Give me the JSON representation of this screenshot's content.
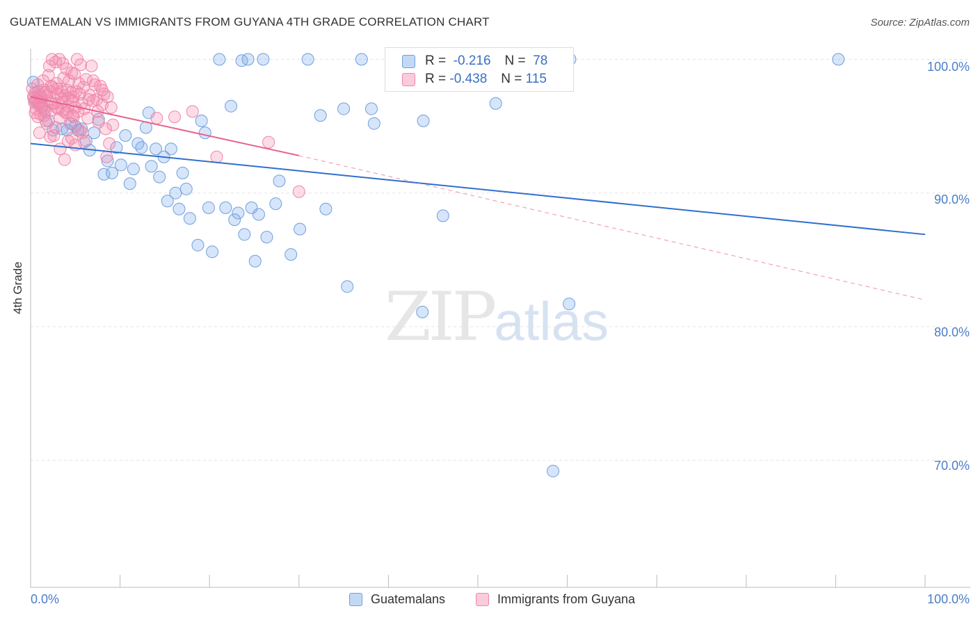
{
  "title": "GUATEMALAN VS IMMIGRANTS FROM GUYANA 4TH GRADE CORRELATION CHART",
  "source": "Source: ZipAtlas.com",
  "legend": {
    "r_label": "R =",
    "n_label": "N =",
    "series1": {
      "r": "-0.216",
      "n": "78"
    },
    "series2": {
      "r": "-0.438",
      "n": "115"
    }
  },
  "bottom_legend": {
    "series1": "Guatemalans",
    "series2": "Immigrants from Guyana"
  },
  "watermark": {
    "zip": "ZIP",
    "atlas": "atlas"
  },
  "colors": {
    "blue_fill": "rgba(120,170,235,0.30)",
    "blue_stroke": "#6f9fdc",
    "blue_line": "#2f6fce",
    "pink_fill": "rgba(245,140,175,0.30)",
    "pink_stroke": "#ee86a8",
    "pink_line": "#e8628e"
  },
  "chart_data": {
    "type": "scatter",
    "title": "GUATEMALAN VS IMMIGRANTS FROM GUYANA 4TH GRADE CORRELATION CHART",
    "xlabel": "",
    "ylabel": "4th Grade",
    "xlim": [
      0,
      100
    ],
    "ylim": [
      60.5,
      100.8
    ],
    "x_tick_labels": [
      "0.0%",
      "100.0%"
    ],
    "y_ticks": [
      {
        "value": 100,
        "label": "100.0%"
      },
      {
        "value": 90,
        "label": "90.0%"
      },
      {
        "value": 80,
        "label": "80.0%"
      },
      {
        "value": 70,
        "label": "70.0%"
      }
    ],
    "grid": true,
    "series": [
      {
        "name": "Guatemalans",
        "r": -0.216,
        "n": 78,
        "trend": {
          "x": [
            0,
            100
          ],
          "y": [
            93.7,
            86.9
          ],
          "style": "solid"
        },
        "points": [
          [
            0.3,
            98.3
          ],
          [
            0.8,
            97.6
          ],
          [
            1.2,
            96.8
          ],
          [
            1.5,
            96.3
          ],
          [
            0.5,
            96.9
          ],
          [
            2.0,
            95.4
          ],
          [
            2.5,
            94.7
          ],
          [
            3.5,
            94.8
          ],
          [
            4.1,
            94.7
          ],
          [
            4.6,
            95.2
          ],
          [
            5.0,
            95.0
          ],
          [
            5.7,
            94.8
          ],
          [
            6.2,
            93.9
          ],
          [
            6.6,
            93.2
          ],
          [
            7.1,
            94.5
          ],
          [
            7.6,
            95.5
          ],
          [
            8.2,
            91.4
          ],
          [
            8.6,
            92.4
          ],
          [
            9.1,
            91.5
          ],
          [
            9.6,
            93.4
          ],
          [
            10.1,
            92.1
          ],
          [
            10.6,
            94.3
          ],
          [
            11.1,
            90.7
          ],
          [
            11.5,
            91.8
          ],
          [
            12.0,
            93.7
          ],
          [
            12.4,
            93.4
          ],
          [
            12.9,
            94.9
          ],
          [
            13.2,
            96.0
          ],
          [
            13.5,
            92.0
          ],
          [
            14.0,
            93.3
          ],
          [
            14.4,
            91.2
          ],
          [
            14.9,
            92.7
          ],
          [
            15.3,
            89.4
          ],
          [
            15.7,
            93.3
          ],
          [
            16.2,
            90.0
          ],
          [
            16.6,
            88.8
          ],
          [
            17.0,
            91.5
          ],
          [
            17.4,
            90.3
          ],
          [
            17.8,
            88.1
          ],
          [
            18.7,
            86.1
          ],
          [
            19.1,
            95.4
          ],
          [
            19.5,
            94.5
          ],
          [
            19.9,
            88.9
          ],
          [
            20.3,
            85.6
          ],
          [
            21.1,
            100.0
          ],
          [
            21.8,
            88.9
          ],
          [
            22.4,
            96.5
          ],
          [
            22.8,
            88.0
          ],
          [
            23.2,
            88.5
          ],
          [
            23.6,
            99.9
          ],
          [
            23.9,
            86.9
          ],
          [
            24.3,
            100.0
          ],
          [
            24.7,
            88.9
          ],
          [
            25.1,
            84.9
          ],
          [
            25.5,
            88.4
          ],
          [
            26.0,
            100.0
          ],
          [
            26.4,
            86.7
          ],
          [
            27.4,
            89.2
          ],
          [
            27.8,
            90.9
          ],
          [
            29.1,
            85.4
          ],
          [
            30.1,
            87.3
          ],
          [
            31.0,
            100.0
          ],
          [
            32.4,
            95.8
          ],
          [
            33.0,
            88.8
          ],
          [
            35.0,
            96.3
          ],
          [
            37.0,
            100.0
          ],
          [
            35.4,
            83.0
          ],
          [
            38.1,
            96.3
          ],
          [
            38.4,
            95.2
          ],
          [
            43.8,
            81.1
          ],
          [
            43.9,
            95.4
          ],
          [
            46.1,
            88.3
          ],
          [
            52.0,
            96.7
          ],
          [
            60.3,
            100.0
          ],
          [
            60.2,
            81.7
          ],
          [
            58.4,
            69.2
          ],
          [
            90.3,
            100.0
          ],
          [
            5.3,
            94.7
          ]
        ]
      },
      {
        "name": "Immigrants from Guyana",
        "r": -0.438,
        "n": 115,
        "trend": {
          "x": [
            0,
            30
          ],
          "y": [
            97.2,
            92.8
          ],
          "style": "solid",
          "extension": {
            "x": [
              30,
              100
            ],
            "y": [
              92.8,
              82.0
            ],
            "style": "dashed"
          }
        },
        "points": [
          [
            0.2,
            97.8
          ],
          [
            0.3,
            97.2
          ],
          [
            0.4,
            96.8
          ],
          [
            0.5,
            97.5
          ],
          [
            0.6,
            96.3
          ],
          [
            0.7,
            97.0
          ],
          [
            0.8,
            98.1
          ],
          [
            0.9,
            96.6
          ],
          [
            1.0,
            97.4
          ],
          [
            1.1,
            95.9
          ],
          [
            1.2,
            97.1
          ],
          [
            1.3,
            96.4
          ],
          [
            1.4,
            98.4
          ],
          [
            1.5,
            97.7
          ],
          [
            1.6,
            96.1
          ],
          [
            1.7,
            95.4
          ],
          [
            1.8,
            97.3
          ],
          [
            1.9,
            96.9
          ],
          [
            2.0,
            98.8
          ],
          [
            2.1,
            99.5
          ],
          [
            2.2,
            97.6
          ],
          [
            2.3,
            96.2
          ],
          [
            2.4,
            100.0
          ],
          [
            2.5,
            97.9
          ],
          [
            2.6,
            94.3
          ],
          [
            2.7,
            96.7
          ],
          [
            2.8,
            99.8
          ],
          [
            2.9,
            98.2
          ],
          [
            3.0,
            97.4
          ],
          [
            3.1,
            96.3
          ],
          [
            3.2,
            100.0
          ],
          [
            3.3,
            95.6
          ],
          [
            3.4,
            97.1
          ],
          [
            3.5,
            96.8
          ],
          [
            3.6,
            99.7
          ],
          [
            3.7,
            98.6
          ],
          [
            3.8,
            97.3
          ],
          [
            3.9,
            96.0
          ],
          [
            4.0,
            99.3
          ],
          [
            4.1,
            97.7
          ],
          [
            4.2,
            96.5
          ],
          [
            4.3,
            98.4
          ],
          [
            4.4,
            95.2
          ],
          [
            4.5,
            97.5
          ],
          [
            4.6,
            99.0
          ],
          [
            4.7,
            96.9
          ],
          [
            4.8,
            97.2
          ],
          [
            4.9,
            98.9
          ],
          [
            5.0,
            96.4
          ],
          [
            5.1,
            97.6
          ],
          [
            5.2,
            100.0
          ],
          [
            5.3,
            96.1
          ],
          [
            5.4,
            98.2
          ],
          [
            5.5,
            97.4
          ],
          [
            5.6,
            99.6
          ],
          [
            5.7,
            96.7
          ],
          [
            5.8,
            94.5
          ],
          [
            5.9,
            97.9
          ],
          [
            6.0,
            96.3
          ],
          [
            6.2,
            98.5
          ],
          [
            6.4,
            95.6
          ],
          [
            6.6,
            97.3
          ],
          [
            6.8,
            99.5
          ],
          [
            7.0,
            96.9
          ],
          [
            7.2,
            98.1
          ],
          [
            7.4,
            97.0
          ],
          [
            7.6,
            95.3
          ],
          [
            7.8,
            98.0
          ],
          [
            8.0,
            96.6
          ],
          [
            8.2,
            97.4
          ],
          [
            8.4,
            94.8
          ],
          [
            8.6,
            97.2
          ],
          [
            8.8,
            93.7
          ],
          [
            9.0,
            96.4
          ],
          [
            9.2,
            95.1
          ],
          [
            1.0,
            94.5
          ],
          [
            1.5,
            95.8
          ],
          [
            2.2,
            94.2
          ],
          [
            2.8,
            94.9
          ],
          [
            3.3,
            93.3
          ],
          [
            3.8,
            92.5
          ],
          [
            4.2,
            93.9
          ],
          [
            4.8,
            95.7
          ],
          [
            5.5,
            94.7
          ],
          [
            6.0,
            93.8
          ],
          [
            0.5,
            96.0
          ],
          [
            0.8,
            95.7
          ],
          [
            1.2,
            96.5
          ],
          [
            1.8,
            95.2
          ],
          [
            2.4,
            96.7
          ],
          [
            3.0,
            97.8
          ],
          [
            3.6,
            96.2
          ],
          [
            4.2,
            97.1
          ],
          [
            4.6,
            94.1
          ],
          [
            5.0,
            93.6
          ],
          [
            6.5,
            97.0
          ],
          [
            7.0,
            98.4
          ],
          [
            7.5,
            96.1
          ],
          [
            8.0,
            97.7
          ],
          [
            8.5,
            92.7
          ],
          [
            14.1,
            95.6
          ],
          [
            16.1,
            95.7
          ],
          [
            18.1,
            96.1
          ],
          [
            20.8,
            92.7
          ],
          [
            26.6,
            93.8
          ],
          [
            30.0,
            90.1
          ],
          [
            1.1,
            97.2
          ],
          [
            1.6,
            97.5
          ],
          [
            2.3,
            98.0
          ],
          [
            2.9,
            96.4
          ],
          [
            3.5,
            97.6
          ],
          [
            4.1,
            96.0
          ],
          [
            4.7,
            95.8
          ],
          [
            0.4,
            97.1
          ],
          [
            0.9,
            96.8
          ]
        ]
      }
    ]
  }
}
